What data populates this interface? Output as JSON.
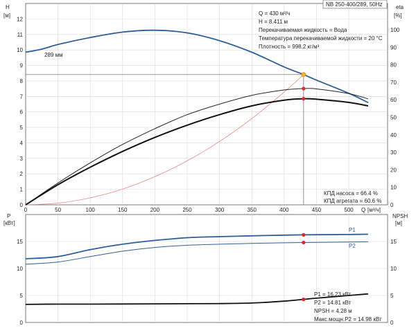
{
  "chart_data": [
    {
      "type": "line",
      "title": "NB 250-400/289, 50Hz",
      "left_axis_label": "H",
      "left_axis_unit": "[м]",
      "right_axis_label": "eta",
      "right_axis_unit": "[%]",
      "xlabel": "Q",
      "xunit": "[м³/ч]",
      "xlim": [
        0,
        560
      ],
      "ylim_left": [
        0,
        13
      ],
      "ylim_right": [
        0,
        115
      ],
      "x_ticks": [
        0,
        50,
        100,
        150,
        200,
        250,
        300,
        350,
        400,
        450,
        500
      ],
      "y_ticks_left": [
        0,
        1,
        2,
        3,
        4,
        5,
        6,
        7,
        8,
        9,
        10,
        11,
        12
      ],
      "y_ticks_right": [
        0,
        10,
        20,
        30,
        40,
        50,
        60,
        70,
        80,
        90,
        100
      ],
      "impeller_label": "289 мм",
      "duty_point": {
        "Q": 430,
        "H": 8.411,
        "eta_pump": 66.4,
        "eta_unit": 60.6
      },
      "info_lines": [
        "Q = 430 м³/ч",
        "H = 8.411 м",
        "Перекачиваемая жидкость = Вода",
        "Температура перекачиваемой жидкости = 20 °C",
        "Плотность = 998.2 кг/м³"
      ],
      "efficiency_lines": [
        "КПД насоса = 66.4 %",
        "КПД агрегата = 60.6 %"
      ],
      "series": [
        {
          "role": "head",
          "axis": "left",
          "color": "#2c5f9a",
          "x": [
            0,
            25,
            50,
            100,
            150,
            200,
            250,
            300,
            350,
            400,
            430,
            450,
            500,
            530
          ],
          "y": [
            9.85,
            10.05,
            10.35,
            10.8,
            11.15,
            11.27,
            11.1,
            10.6,
            9.85,
            8.9,
            8.411,
            8.05,
            7.2,
            6.6
          ]
        },
        {
          "role": "system",
          "axis": "left",
          "color": "#f08080",
          "x": [
            0,
            50,
            100,
            150,
            200,
            250,
            300,
            350,
            400,
            430
          ],
          "y": [
            0,
            0.11,
            0.45,
            1.02,
            1.82,
            2.84,
            4.09,
            5.57,
            7.28,
            8.411
          ]
        },
        {
          "role": "eta_pump",
          "axis": "right",
          "color": "#222222",
          "x": [
            0,
            50,
            100,
            150,
            200,
            250,
            300,
            350,
            400,
            430,
            450,
            500,
            530
          ],
          "y": [
            0,
            12.5,
            24,
            34.5,
            43.5,
            51.5,
            57.5,
            62.5,
            65.6,
            66.4,
            66.2,
            63.5,
            60.5
          ]
        },
        {
          "role": "eta_unit",
          "axis": "right",
          "color": "#111111",
          "x": [
            0,
            50,
            100,
            150,
            200,
            250,
            300,
            350,
            400,
            430,
            450,
            500,
            530
          ],
          "y": [
            0,
            11.5,
            21.5,
            30.5,
            38.5,
            45.5,
            51.5,
            56.5,
            59.8,
            60.6,
            60.3,
            58.5,
            56.5
          ]
        }
      ]
    },
    {
      "type": "line",
      "left_axis_label": "P",
      "left_axis_unit": "[кВт]",
      "right_axis_label": "NPSH",
      "right_axis_unit": "[м]",
      "xlim": [
        0,
        560
      ],
      "ylim_left": [
        0,
        20
      ],
      "ylim_right": [
        0,
        20
      ],
      "y_ticks_left": [
        0,
        5,
        10,
        15
      ],
      "y_ticks_right": [
        0,
        5,
        10,
        15
      ],
      "result_lines": [
        "P1 = 16.23 кВт",
        "P2 = 14.81 кВт",
        "NPSH = 4.28 м",
        "Макс.мощн.P2 = 14.98 кВт"
      ],
      "series": [
        {
          "name": "P1",
          "axis": "left",
          "color": "#2c5f9a",
          "x": [
            0,
            50,
            100,
            150,
            200,
            250,
            300,
            350,
            400,
            430,
            450,
            500,
            530
          ],
          "y": [
            11.8,
            12.2,
            13.5,
            14.5,
            15.2,
            15.7,
            15.9,
            16.05,
            16.18,
            16.23,
            16.26,
            16.3,
            16.35
          ]
        },
        {
          "name": "P2",
          "axis": "left",
          "color": "#2c5f9a",
          "x": [
            0,
            50,
            100,
            150,
            200,
            250,
            300,
            350,
            400,
            430,
            450,
            500,
            530
          ],
          "y": [
            10.8,
            11.2,
            12.2,
            13.2,
            13.9,
            14.3,
            14.5,
            14.65,
            14.75,
            14.81,
            14.84,
            14.9,
            14.95
          ]
        },
        {
          "role": "npsh",
          "axis": "right",
          "color": "#111111",
          "x": [
            0,
            50,
            100,
            150,
            200,
            250,
            300,
            350,
            400,
            430,
            450,
            500,
            530
          ],
          "y": [
            3.35,
            3.4,
            3.4,
            3.42,
            3.45,
            3.48,
            3.5,
            3.6,
            3.95,
            4.28,
            4.5,
            5.0,
            5.3
          ]
        }
      ]
    }
  ]
}
